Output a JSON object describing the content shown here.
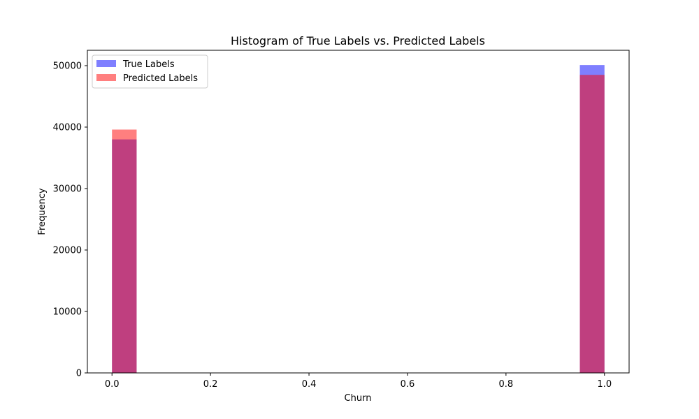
{
  "chart_data": {
    "type": "bar",
    "title": "Histogram of True Labels vs. Predicted Labels",
    "xlabel": "Churn",
    "ylabel": "Frequency",
    "xlim": [
      -0.05,
      1.05
    ],
    "ylim": [
      0,
      52500
    ],
    "x_ticks": [
      0.0,
      0.2,
      0.4,
      0.6,
      0.8,
      1.0
    ],
    "x_tick_labels": [
      "0.0",
      "0.2",
      "0.4",
      "0.6",
      "0.8",
      "1.0"
    ],
    "y_ticks": [
      0,
      10000,
      20000,
      30000,
      40000,
      50000
    ],
    "y_tick_labels": [
      "0",
      "10000",
      "20000",
      "30000",
      "40000",
      "50000"
    ],
    "bins": [
      {
        "start": 0.0,
        "end": 0.05
      },
      {
        "start": 0.95,
        "end": 1.0
      }
    ],
    "series": [
      {
        "name": "True Labels",
        "color": "#0000ff",
        "opacity": 0.5,
        "values": [
          38000,
          50100
        ]
      },
      {
        "name": "Predicted Labels",
        "color": "#ff0000",
        "opacity": 0.5,
        "values": [
          39600,
          48500
        ]
      }
    ],
    "grid": false,
    "legend": "top-left"
  }
}
